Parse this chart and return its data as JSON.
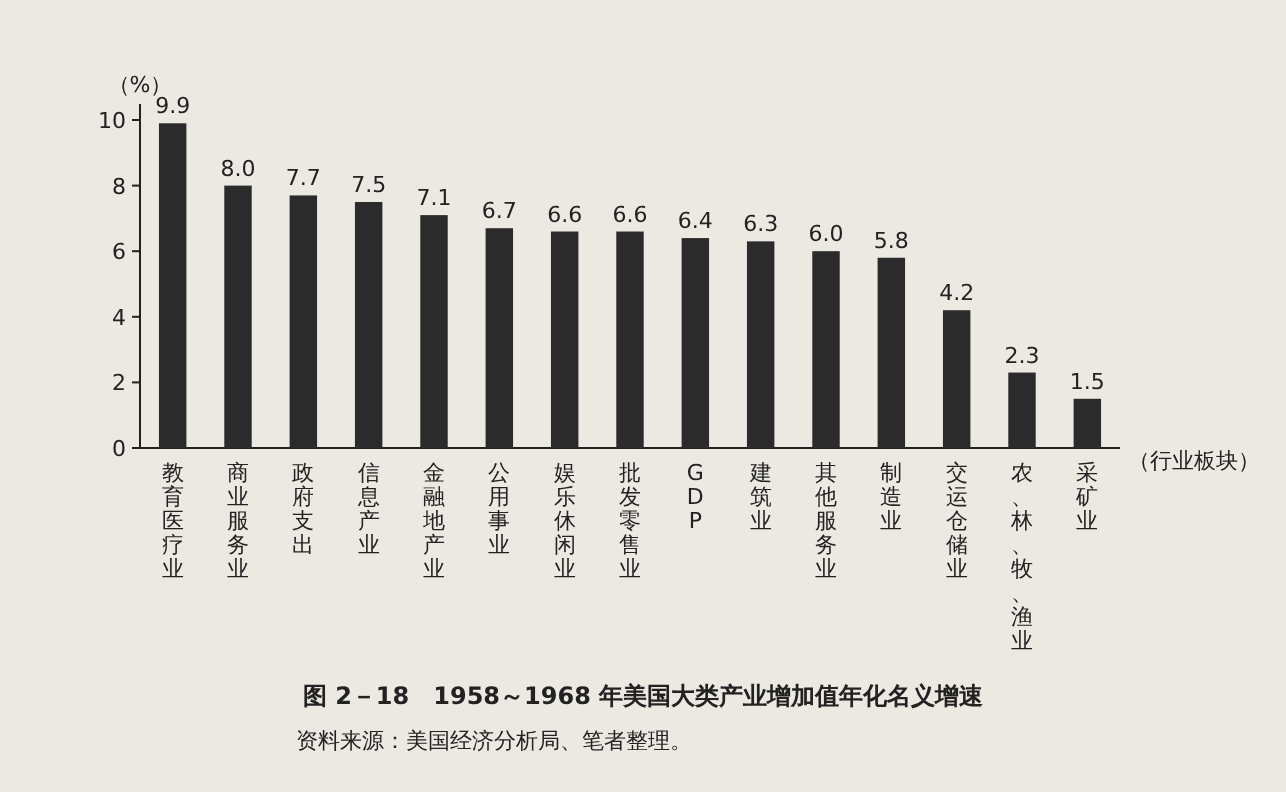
{
  "chart_data": {
    "type": "bar",
    "title": "图 2－18　1958～1968 年美国大类产业增加值年化名义增速",
    "ylabel": "（%）",
    "xlabel": "（行业板块）",
    "categories": [
      "教育医疗业",
      "商业服务业",
      "政府支出",
      "信息产业",
      "金融地产业",
      "公用事业",
      "娱乐休闲业",
      "批发零售业",
      "GDP",
      "建筑业",
      "其他服务业",
      "制造业",
      "交运仓储业",
      "农、林、牧、渔业",
      "采矿业"
    ],
    "values": [
      9.9,
      8.0,
      7.7,
      7.5,
      7.1,
      6.7,
      6.6,
      6.6,
      6.4,
      6.3,
      6.0,
      5.8,
      4.2,
      2.3,
      1.5
    ],
    "value_labels": [
      "9.9",
      "8.0",
      "7.7",
      "7.5",
      "7.1",
      "6.7",
      "6.6",
      "6.6",
      "6.4",
      "6.3",
      "6.0",
      "5.8",
      "4.2",
      "2.3",
      "1.5"
    ],
    "color": "#2b2b2b",
    "ylim": [
      0,
      10
    ],
    "yticks": [
      0,
      2,
      4,
      6,
      8,
      10
    ],
    "grid": false,
    "annotations": [
      "资料来源：美国经济分析局、笔者整理。"
    ]
  }
}
